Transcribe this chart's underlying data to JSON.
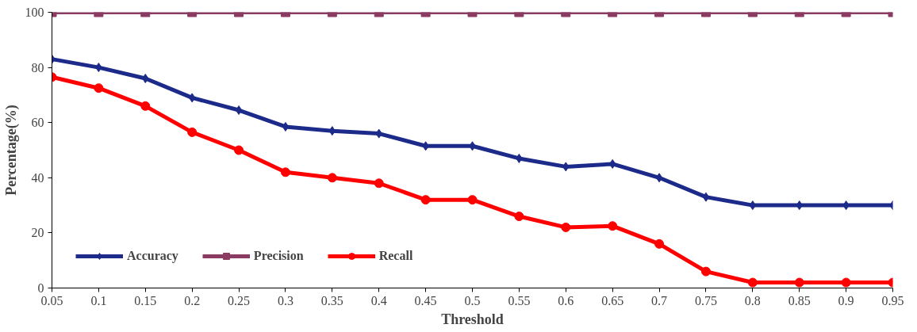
{
  "chart_data": {
    "type": "line",
    "xlabel": "Threshold",
    "ylabel": "Percentage(%)",
    "x": [
      0.05,
      0.1,
      0.15,
      0.2,
      0.25,
      0.3,
      0.35,
      0.4,
      0.45,
      0.5,
      0.55,
      0.6,
      0.65,
      0.7,
      0.75,
      0.8,
      0.85,
      0.9,
      0.95
    ],
    "xlim": [
      0.05,
      0.95
    ],
    "xticks": [
      0.05,
      0.1,
      0.15,
      0.2,
      0.25,
      0.3,
      0.35,
      0.4,
      0.45,
      0.5,
      0.55,
      0.6,
      0.65,
      0.7,
      0.75,
      0.8,
      0.85,
      0.9,
      0.95
    ],
    "ylim": [
      0,
      100
    ],
    "yticks": [
      0,
      20,
      40,
      60,
      80,
      100
    ],
    "grid": false,
    "legend": "bottom left",
    "line_style": "solid",
    "series": [
      {
        "name": "Accuracy",
        "color": "#1c2a8a",
        "marker": "diamond",
        "values": [
          83,
          80,
          76,
          69,
          64.5,
          58.5,
          57,
          56,
          51.5,
          51.5,
          47,
          44,
          45,
          40,
          33,
          30,
          30,
          30,
          30
        ]
      },
      {
        "name": "Precision",
        "color": "#8b3a62",
        "marker": "square",
        "values": [
          100,
          100,
          100,
          100,
          100,
          100,
          100,
          100,
          100,
          100,
          100,
          100,
          100,
          100,
          100,
          100,
          100,
          100,
          100
        ]
      },
      {
        "name": "Recall",
        "color": "#ff0000",
        "marker": "circle",
        "values": [
          76.5,
          72.5,
          66,
          56.5,
          50,
          42,
          40,
          38,
          32,
          32,
          26,
          22,
          22.5,
          16,
          6,
          2,
          2,
          2,
          2
        ]
      }
    ]
  }
}
